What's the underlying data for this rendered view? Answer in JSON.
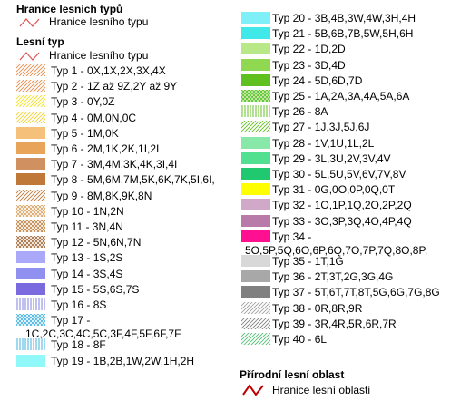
{
  "left": {
    "heading_boundary": "Hranice lesních typů",
    "boundary_label": "Hranice lesního typu",
    "heading_forest": "Lesní typ",
    "boundary_label_2": "Hranice lesního typu",
    "items": [
      {
        "label": "Typ 1 - 0X,1X,2X,3X,4X",
        "pattern": "diag",
        "color": "#e88a4a",
        "bg": "#ffffff"
      },
      {
        "label": "Typ 2 - 1Z až 9Z,2Y až 9Y",
        "pattern": "diag",
        "color": "#e88a4a",
        "bg": "#ffffff"
      },
      {
        "label": "Typ 3 - 0Y,0Z",
        "pattern": "diag",
        "color": "#f0e020",
        "bg": "#ffffff"
      },
      {
        "label": "Typ 4 - 0M,0N,0C",
        "pattern": "diag",
        "color": "#f0d030",
        "bg": "#ffffff"
      },
      {
        "label": "Typ 5 - 1M,0K",
        "pattern": "solid",
        "color": "#f5c07a"
      },
      {
        "label": "Typ 6 - 2M,1K,2K,1I,2I",
        "pattern": "solid",
        "color": "#e8a55a"
      },
      {
        "label": "Typ 7 - 3M,4M,3K,4K,3I,4I",
        "pattern": "solid",
        "color": "#d09060"
      },
      {
        "label": "Typ 8 - 5M,6M,7M,5K,6K,7K,5I,6I,",
        "pattern": "solid",
        "color": "#c07838"
      },
      {
        "label": "Typ 9 - 8M,8K,9K,8N",
        "pattern": "diag",
        "color": "#c07838",
        "bg": "#ffffff"
      },
      {
        "label": "Typ 10 - 1N,2N",
        "pattern": "cross",
        "color": "#d8a060",
        "bg": "#ffffff"
      },
      {
        "label": "Typ 11 - 3N,4N",
        "pattern": "cross",
        "color": "#c08040",
        "bg": "#ffffff"
      },
      {
        "label": "Typ 12 - 5N,6N,7N",
        "pattern": "cross",
        "color": "#a06838",
        "bg": "#ffffff"
      },
      {
        "label": "Typ 13 - 1S,2S",
        "pattern": "solid",
        "color": "#aaa8f8"
      },
      {
        "label": "Typ 14 - 3S,4S",
        "pattern": "solid",
        "color": "#9090f0"
      },
      {
        "label": "Typ 15 - 5S,6S,7S",
        "pattern": "solid",
        "color": "#7a6ae0"
      },
      {
        "label": "Typ 16 - 8S",
        "pattern": "vert",
        "color": "#8080e0",
        "bg": "#ffffff"
      },
      {
        "label": "Typ 17 -",
        "cont": "1C,2C,3C,4C,5C,3F,4F,5F,6F,7F",
        "pattern": "cross",
        "color": "#40b0e0",
        "bg": "#ffffff"
      },
      {
        "label": "Typ 18 - 8F",
        "pattern": "vert",
        "color": "#40b0e0",
        "bg": "#ffffff"
      },
      {
        "label": "Typ 19 - 1B,2B,1W,2W,1H,2H",
        "pattern": "solid",
        "color": "#90f8f8"
      }
    ]
  },
  "right": {
    "items": [
      {
        "label": "Typ 20 - 3B,4B,3W,4W,3H,4H",
        "pattern": "solid",
        "color": "#80f0f8"
      },
      {
        "label": "Typ 21 - 5B,6B,7B,5W,5H,6H",
        "pattern": "solid",
        "color": "#40e8e8"
      },
      {
        "label": "Typ 22 - 1D,2D",
        "pattern": "solid",
        "color": "#b8e888"
      },
      {
        "label": "Typ 23 - 3D,4D",
        "pattern": "solid",
        "color": "#90d850"
      },
      {
        "label": "Typ 24 - 5D,6D,7D",
        "pattern": "solid",
        "color": "#60c020"
      },
      {
        "label": "Typ 25 - 1A,2A,3A,4A,5A,6A",
        "pattern": "cross",
        "color": "#50c030",
        "bg": "#d8f0b0"
      },
      {
        "label": "Typ 26 - 8A",
        "pattern": "vert",
        "color": "#60c020",
        "bg": "#ffffff"
      },
      {
        "label": "Typ 27 - 1J,3J,5J,6J",
        "pattern": "diag",
        "color": "#60c020",
        "bg": "#ffffff"
      },
      {
        "label": "Typ 28 - 1V,1U,1L,2L",
        "pattern": "solid",
        "color": "#88e8a8"
      },
      {
        "label": "Typ 29 - 3L,3U,2V,3V,4V",
        "pattern": "solid",
        "color": "#50e090"
      },
      {
        "label": "Typ 30 - 5L,5U,5V,6V,7V,8V",
        "pattern": "solid",
        "color": "#20c870"
      },
      {
        "label": "Typ 31 - 0G,0O,0P,0Q,0T",
        "pattern": "solid",
        "color": "#ffff00"
      },
      {
        "label": "Typ 32 - 1O,1P,1Q,2O,2P,2Q",
        "pattern": "solid",
        "color": "#d0a8c8"
      },
      {
        "label": "Typ 33 - 3O,3P,3Q,4O,4P,4Q",
        "pattern": "solid",
        "color": "#b87aa8"
      },
      {
        "label": "Typ 34 -",
        "cont": "5O,5P,5Q,6O,6P,6Q,7O,7P,7Q,8O,8P,",
        "pattern": "solid",
        "color": "#ff1090"
      },
      {
        "label": "Typ 35 - 1T,1G",
        "pattern": "solid",
        "color": "#d8d8d8"
      },
      {
        "label": "Typ 36 - 2T,3T,2G,3G,4G",
        "pattern": "solid",
        "color": "#a8a8a8"
      },
      {
        "label": "Typ 37 - 5T,6T,7T,8T,5G,6G,7G,8G",
        "pattern": "solid",
        "color": "#808080"
      },
      {
        "label": "Typ 38 - 0R,8R,9R",
        "pattern": "diag",
        "color": "#a0a0a0",
        "bg": "#ffffff"
      },
      {
        "label": "Typ 39 - 3R,4R,5R,6R,7R",
        "pattern": "diag",
        "color": "#808080",
        "bg": "#ffffff"
      },
      {
        "label": "Typ 40 - 6L",
        "pattern": "diag",
        "color": "#50c070",
        "bg": "#ffffff"
      }
    ],
    "heading_region": "Přírodní lesní oblast",
    "region_label": "Hranice lesní oblasti"
  },
  "colors": {
    "boundary_line": "#e05050",
    "region_line": "#c00000"
  }
}
